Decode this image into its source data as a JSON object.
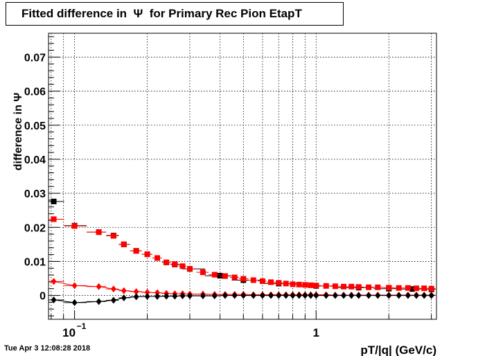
{
  "chart_data": {
    "type": "scatter",
    "title": "Fitted difference in  Ψ  for Primary Rec Pion EtapT",
    "xlabel": "pT/|q| (GeV/c)",
    "ylabel": "difference in  Ψ",
    "x_scale": "log",
    "xlim": [
      0.078,
      3.15
    ],
    "ylim": [
      -0.007,
      0.077
    ],
    "grid": true,
    "x_ticks": [
      {
        "value": 0.1,
        "label": "10",
        "exp": "−1"
      },
      {
        "value": 1,
        "label": "1",
        "exp": ""
      }
    ],
    "y_ticks": [
      {
        "value": 0,
        "label": "0"
      },
      {
        "value": 0.01,
        "label": "0.01"
      },
      {
        "value": 0.02,
        "label": "0.02"
      },
      {
        "value": 0.03,
        "label": "0.03"
      },
      {
        "value": 0.04,
        "label": "0.04"
      },
      {
        "value": 0.05,
        "label": "0.05"
      },
      {
        "value": 0.06,
        "label": "0.06"
      },
      {
        "value": 0.07,
        "label": "0.07"
      }
    ],
    "series": [
      {
        "color": "#000000",
        "marker": "square",
        "x": [
          0.082,
          0.1,
          0.126,
          0.145,
          0.16,
          0.18,
          0.2,
          0.22,
          0.24,
          0.26,
          0.3,
          0.4,
          0.5,
          0.7,
          1.0,
          1.5,
          2.0,
          2.5,
          3.0
        ],
        "y": [
          0.0276,
          0.0205,
          0.0186,
          0.0176,
          0.015,
          0.0131,
          0.0121,
          0.011,
          0.0097,
          0.0091,
          0.0078,
          0.0058,
          0.0045,
          0.0035,
          0.0028,
          0.0023,
          0.002,
          0.0019,
          0.0018
        ]
      },
      {
        "color": "#ff0000",
        "marker": "square",
        "x": [
          0.082,
          0.1,
          0.126,
          0.145,
          0.16,
          0.18,
          0.2,
          0.22,
          0.24,
          0.26,
          0.28,
          0.3,
          0.34,
          0.38,
          0.42,
          0.46,
          0.5,
          0.55,
          0.6,
          0.65,
          0.7,
          0.75,
          0.8,
          0.85,
          0.9,
          0.95,
          1.0,
          1.1,
          1.2,
          1.3,
          1.4,
          1.5,
          1.65,
          1.8,
          2.0,
          2.2,
          2.4,
          2.6,
          2.8,
          3.0
        ],
        "y": [
          0.0224,
          0.0204,
          0.0186,
          0.0175,
          0.015,
          0.0131,
          0.0121,
          0.011,
          0.0097,
          0.0092,
          0.0086,
          0.0078,
          0.0068,
          0.0061,
          0.0057,
          0.0053,
          0.0049,
          0.0045,
          0.0042,
          0.0039,
          0.0037,
          0.0035,
          0.0033,
          0.0032,
          0.0031,
          0.003,
          0.0029,
          0.0028,
          0.0027,
          0.0026,
          0.0026,
          0.0025,
          0.0024,
          0.0024,
          0.0023,
          0.0022,
          0.0022,
          0.0021,
          0.0021,
          0.002
        ]
      },
      {
        "color": "#ff0000",
        "marker": "diamond",
        "x": [
          0.082,
          0.1,
          0.126,
          0.145,
          0.16,
          0.18,
          0.2,
          0.22,
          0.24,
          0.26,
          0.28,
          0.3,
          0.34,
          0.38,
          0.42,
          0.46,
          0.5,
          0.55,
          0.6,
          0.65,
          0.7,
          0.75,
          0.8,
          0.85,
          0.9,
          0.95,
          1.0,
          1.1,
          1.2,
          1.3,
          1.4,
          1.5,
          1.65,
          1.8,
          2.0,
          2.2,
          2.4,
          2.6,
          2.8,
          3.0
        ],
        "y": [
          0.0041,
          0.0029,
          0.0026,
          0.0019,
          0.0014,
          0.0011,
          0.0009,
          0.0008,
          0.0006,
          0.0005,
          0.0005,
          0.0004,
          0.0004,
          0.0003,
          0.0003,
          0.0003,
          0.0003,
          0.0002,
          0.0002,
          0.0002,
          0.0002,
          0.0002,
          0.0002,
          0.0002,
          0.0002,
          0.0002,
          0.0002,
          0.0002,
          0.0001,
          0.0001,
          0.0001,
          0.0001,
          0.0001,
          0.0001,
          0.0001,
          0.0001,
          0.0001,
          0.0001,
          0.0001,
          0.0001
        ]
      },
      {
        "color": "#000000",
        "marker": "diamond",
        "x": [
          0.082,
          0.1,
          0.126,
          0.145,
          0.16,
          0.18,
          0.2,
          0.22,
          0.24,
          0.26,
          0.28,
          0.3,
          0.34,
          0.38,
          0.42,
          0.46,
          0.5,
          0.55,
          0.6,
          0.65,
          0.7,
          0.75,
          0.8,
          0.85,
          0.9,
          0.95,
          1.0,
          1.1,
          1.2,
          1.3,
          1.4,
          1.5,
          1.65,
          1.8,
          2.0,
          2.2,
          2.4,
          2.6,
          2.8,
          3.0
        ],
        "y": [
          -0.0013,
          -0.0021,
          -0.0018,
          -0.0014,
          -0.0007,
          -0.0004,
          -0.0003,
          -0.0003,
          -0.0002,
          -0.0002,
          -0.0001,
          -0.0001,
          -0.0001,
          -0.0001,
          0,
          0,
          0,
          0,
          0,
          0,
          0,
          0,
          0,
          0,
          0,
          0,
          0,
          0,
          0,
          0,
          0,
          0,
          0,
          0,
          0,
          0,
          0,
          0,
          0,
          0
        ]
      }
    ]
  },
  "footer": {
    "timestamp": "Tue Apr  3 12:08:28 2018"
  }
}
